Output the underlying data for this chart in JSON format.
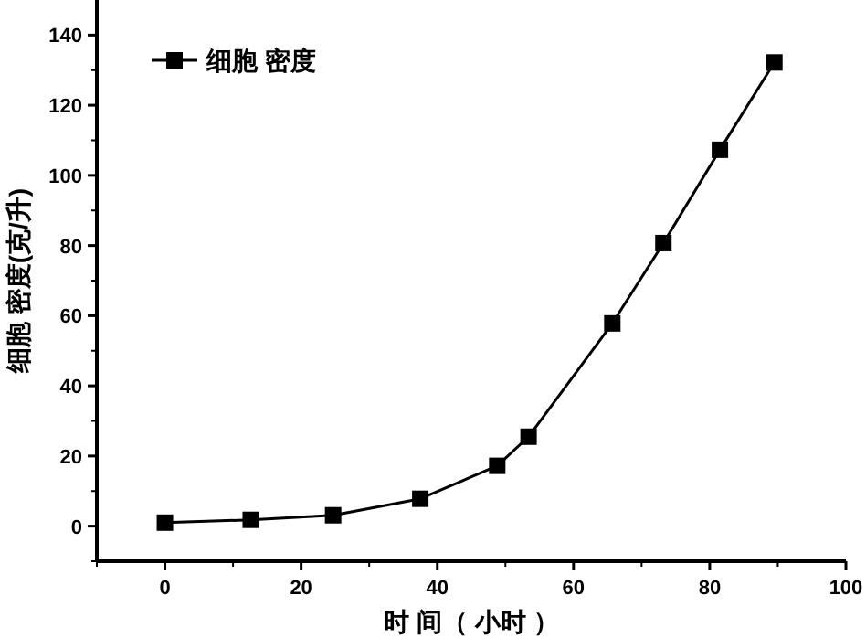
{
  "chart_data": {
    "type": "line",
    "xlabel": "时 间（ 小时 ）",
    "ylabel": "细胞 密度(克/升)",
    "x": [
      0,
      12.6,
      24.7,
      37.5,
      48.8,
      53.4,
      65.7,
      73.2,
      81.5,
      89.5
    ],
    "series": [
      {
        "name": "细胞 密度",
        "color": "#000000",
        "values": [
          1,
          1.8,
          3.1,
          7.8,
          17.2,
          25.5,
          57.8,
          80.7,
          107.3,
          132.2
        ]
      }
    ],
    "xlim": [
      -10,
      100
    ],
    "ylim": [
      -10,
      150
    ],
    "xticks": [
      0,
      20,
      40,
      60,
      80,
      100
    ],
    "yticks": [
      0,
      20,
      40,
      60,
      80,
      100,
      120,
      140
    ],
    "marker": "square",
    "line_style": "solid",
    "legend": "top left",
    "grid": false
  }
}
